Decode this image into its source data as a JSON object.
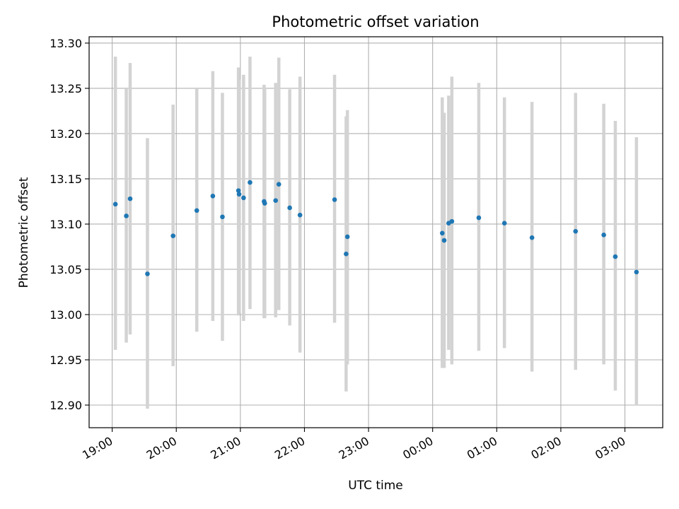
{
  "chart_data": {
    "type": "scatter",
    "title": "Photometric offset variation",
    "xlabel": "UTC time",
    "ylabel": "Photometric offset",
    "grid": true,
    "x_ticks": [
      "19:00",
      "20:00",
      "21:00",
      "22:00",
      "23:00",
      "00:00",
      "01:00",
      "02:00",
      "03:00"
    ],
    "y_ticks": [
      "12.90",
      "12.95",
      "13.00",
      "13.05",
      "13.10",
      "13.15",
      "13.20",
      "13.25",
      "13.30"
    ],
    "ylim": [
      12.875,
      13.307
    ],
    "x_unit": "UTC hours (continuous, 24 = 00:00)",
    "xlim": [
      18.64,
      27.59
    ],
    "points": [
      {
        "x": 19.05,
        "y": 13.122,
        "err_low": 12.961,
        "err_high": 13.285
      },
      {
        "x": 19.22,
        "y": 13.109,
        "err_low": 12.969,
        "err_high": 13.25
      },
      {
        "x": 19.28,
        "y": 13.128,
        "err_low": 12.978,
        "err_high": 13.278
      },
      {
        "x": 19.55,
        "y": 13.045,
        "err_low": 12.896,
        "err_high": 13.195
      },
      {
        "x": 19.95,
        "y": 13.087,
        "err_low": 12.943,
        "err_high": 13.232
      },
      {
        "x": 20.32,
        "y": 13.115,
        "err_low": 12.981,
        "err_high": 13.25
      },
      {
        "x": 20.57,
        "y": 13.131,
        "err_low": 12.993,
        "err_high": 13.269
      },
      {
        "x": 20.72,
        "y": 13.108,
        "err_low": 12.971,
        "err_high": 13.245
      },
      {
        "x": 20.97,
        "y": 13.137,
        "err_low": 12.999,
        "err_high": 13.273
      },
      {
        "x": 20.98,
        "y": 13.133,
        "err_low": 13.002,
        "err_high": 13.26
      },
      {
        "x": 21.05,
        "y": 13.129,
        "err_low": 12.993,
        "err_high": 13.265
      },
      {
        "x": 21.15,
        "y": 13.146,
        "err_low": 13.006,
        "err_high": 13.285
      },
      {
        "x": 21.37,
        "y": 13.125,
        "err_low": 12.996,
        "err_high": 13.254
      },
      {
        "x": 21.38,
        "y": 13.123,
        "err_low": 12.996,
        "err_high": 13.251
      },
      {
        "x": 21.55,
        "y": 13.126,
        "err_low": 12.997,
        "err_high": 13.256
      },
      {
        "x": 21.6,
        "y": 13.144,
        "err_low": 13.005,
        "err_high": 13.284
      },
      {
        "x": 21.77,
        "y": 13.118,
        "err_low": 12.988,
        "err_high": 13.249
      },
      {
        "x": 21.93,
        "y": 13.11,
        "err_low": 12.958,
        "err_high": 13.263
      },
      {
        "x": 22.47,
        "y": 13.127,
        "err_low": 12.991,
        "err_high": 13.265
      },
      {
        "x": 22.65,
        "y": 13.067,
        "err_low": 12.915,
        "err_high": 13.219
      },
      {
        "x": 22.67,
        "y": 13.086,
        "err_low": 12.945,
        "err_high": 13.226
      },
      {
        "x": 24.15,
        "y": 13.09,
        "err_low": 12.941,
        "err_high": 13.24
      },
      {
        "x": 24.18,
        "y": 13.082,
        "err_low": 12.941,
        "err_high": 13.223
      },
      {
        "x": 24.25,
        "y": 13.101,
        "err_low": 12.961,
        "err_high": 13.242
      },
      {
        "x": 24.3,
        "y": 13.103,
        "err_low": 12.945,
        "err_high": 13.263
      },
      {
        "x": 24.72,
        "y": 13.107,
        "err_low": 12.96,
        "err_high": 13.256
      },
      {
        "x": 25.12,
        "y": 13.101,
        "err_low": 12.963,
        "err_high": 13.24
      },
      {
        "x": 25.55,
        "y": 13.085,
        "err_low": 12.937,
        "err_high": 13.235
      },
      {
        "x": 26.23,
        "y": 13.092,
        "err_low": 12.939,
        "err_high": 13.245
      },
      {
        "x": 26.67,
        "y": 13.088,
        "err_low": 12.945,
        "err_high": 13.233
      },
      {
        "x": 26.85,
        "y": 13.064,
        "err_low": 12.916,
        "err_high": 13.214
      },
      {
        "x": 27.18,
        "y": 13.047,
        "err_low": 12.9,
        "err_high": 13.196
      }
    ],
    "colors": {
      "point": "#1f77b4",
      "errorbar": "#d3d3d3",
      "grid": "#b0b0b0",
      "axis": "#000000"
    }
  }
}
